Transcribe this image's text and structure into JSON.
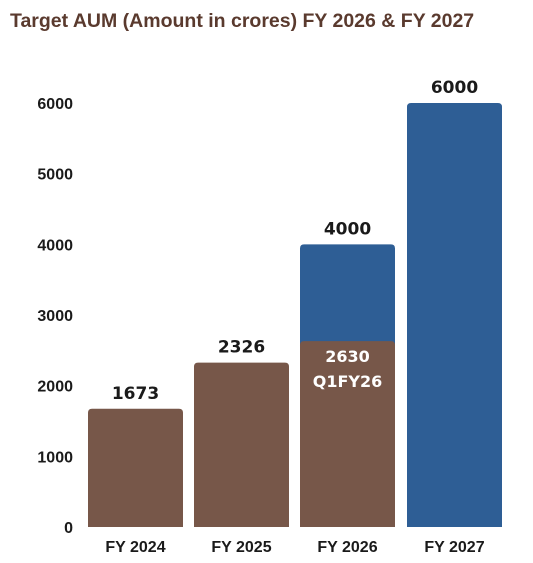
{
  "chart_data": {
    "type": "bar",
    "title": "Target AUM (Amount in crores) FY 2026 & FY 2027",
    "categories": [
      "FY 2024",
      "FY 2025",
      "FY 2026",
      "FY 2027"
    ],
    "ylim": [
      0,
      6000
    ],
    "yticks": [
      0,
      1000,
      2000,
      3000,
      4000,
      5000,
      6000
    ],
    "grid": false,
    "series": [
      {
        "values": [
          1673,
          2326,
          2630,
          null
        ],
        "color": "#775749"
      },
      {
        "values": [
          null,
          null,
          4000,
          6000
        ],
        "color": "#2e5e95"
      }
    ],
    "data_labels": [
      "1673",
      "2326",
      "4000",
      "6000"
    ],
    "inner_labels": [
      {
        "category": "FY 2026",
        "lines": [
          "2630",
          "Q1FY26"
        ]
      }
    ]
  }
}
